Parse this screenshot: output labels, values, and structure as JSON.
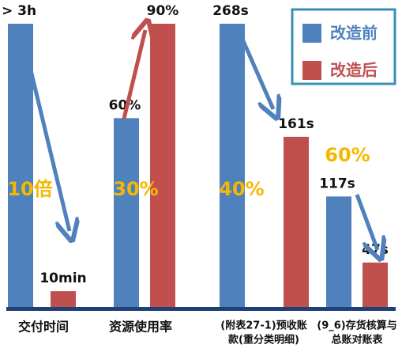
{
  "chart_data": {
    "type": "bar",
    "series": [
      {
        "name": "改造前",
        "color": "#4f81bd"
      },
      {
        "name": "改造后",
        "color": "#c0504d"
      }
    ],
    "groups": [
      {
        "label": [
          "交付时间"
        ],
        "values": [
          180,
          10
        ],
        "value_labels": [
          "> 3h",
          "10min"
        ],
        "ylim": [
          0,
          180
        ],
        "annotation": "10倍"
      },
      {
        "label": [
          "资源使用率"
        ],
        "values": [
          60,
          90
        ],
        "value_labels": [
          "60%",
          "90%"
        ],
        "ylim": [
          0,
          90
        ],
        "annotation": "30%"
      },
      {
        "label": [
          "(附表27-1)预收账",
          "款(重分类明细)"
        ],
        "values": [
          268,
          161
        ],
        "value_labels": [
          "268s",
          "161s"
        ],
        "ylim": [
          0,
          268
        ],
        "annotation": "40%"
      },
      {
        "label": [
          "(9_6)存货核算与",
          "总账对账表"
        ],
        "values": [
          117,
          47
        ],
        "value_labels": [
          "117s",
          "47s"
        ],
        "ylim": [
          0,
          300
        ],
        "annotation": "60%"
      }
    ],
    "annotation_color": "#f5b800"
  }
}
